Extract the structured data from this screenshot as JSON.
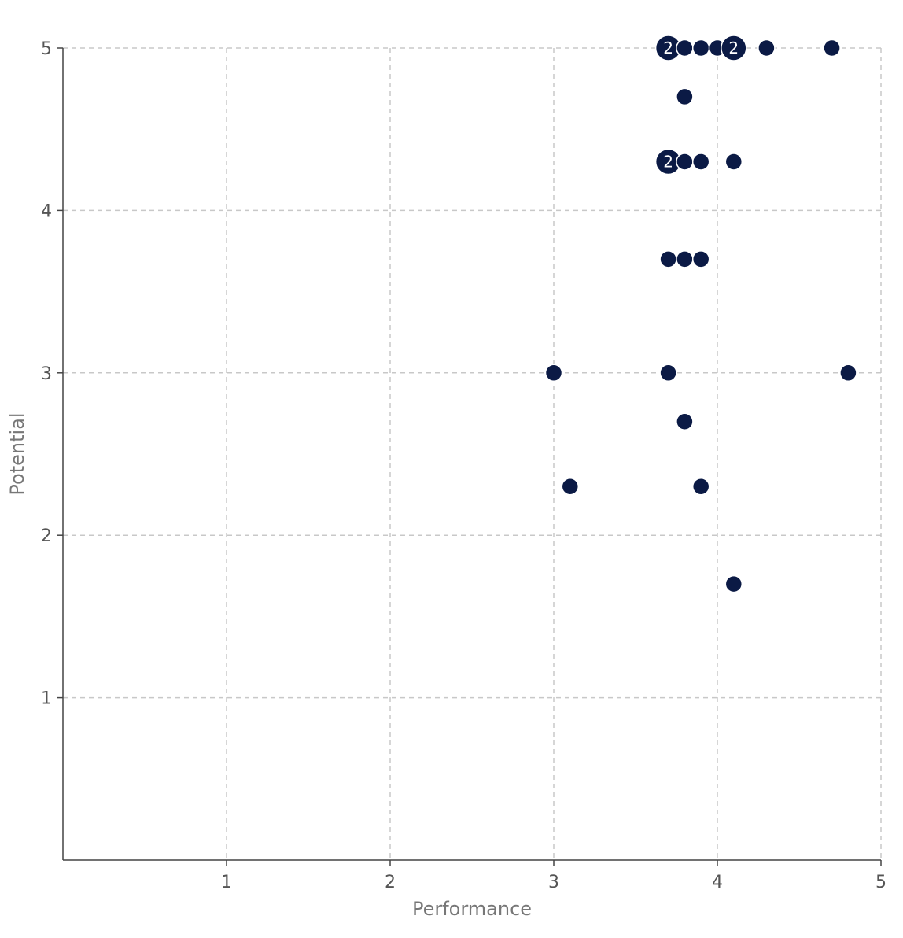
{
  "chart_data": {
    "type": "scatter",
    "title": "",
    "xlabel": "Performance",
    "ylabel": "Potential",
    "xlim": [
      0,
      5
    ],
    "ylim": [
      0,
      5
    ],
    "x_ticks": [
      "1",
      "2",
      "3",
      "4",
      "5"
    ],
    "y_ticks": [
      "1",
      "2",
      "3",
      "4",
      "5"
    ],
    "grid": true,
    "grid_style": "dashed",
    "colors": {
      "point": "#0b1a45",
      "grid": "#c8c8c8",
      "axis": "#444444"
    },
    "points": [
      {
        "x": 3.7,
        "y": 5.0,
        "count": 2
      },
      {
        "x": 3.8,
        "y": 5.0,
        "count": 1
      },
      {
        "x": 3.9,
        "y": 5.0,
        "count": 1
      },
      {
        "x": 4.0,
        "y": 5.0,
        "count": 1
      },
      {
        "x": 4.1,
        "y": 5.0,
        "count": 2
      },
      {
        "x": 4.3,
        "y": 5.0,
        "count": 1
      },
      {
        "x": 4.7,
        "y": 5.0,
        "count": 1
      },
      {
        "x": 3.8,
        "y": 4.7,
        "count": 1
      },
      {
        "x": 3.7,
        "y": 4.3,
        "count": 2
      },
      {
        "x": 3.8,
        "y": 4.3,
        "count": 1
      },
      {
        "x": 3.9,
        "y": 4.3,
        "count": 1
      },
      {
        "x": 4.1,
        "y": 4.3,
        "count": 1
      },
      {
        "x": 3.7,
        "y": 3.7,
        "count": 1
      },
      {
        "x": 3.8,
        "y": 3.7,
        "count": 1
      },
      {
        "x": 3.9,
        "y": 3.7,
        "count": 1
      },
      {
        "x": 3.0,
        "y": 3.0,
        "count": 1
      },
      {
        "x": 3.7,
        "y": 3.0,
        "count": 1
      },
      {
        "x": 4.8,
        "y": 3.0,
        "count": 1
      },
      {
        "x": 3.8,
        "y": 2.7,
        "count": 1
      },
      {
        "x": 3.1,
        "y": 2.3,
        "count": 1
      },
      {
        "x": 3.9,
        "y": 2.3,
        "count": 1
      },
      {
        "x": 4.1,
        "y": 1.7,
        "count": 1
      }
    ]
  }
}
